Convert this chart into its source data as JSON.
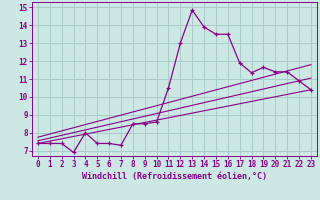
{
  "xlabel": "Windchill (Refroidissement éolien,°C)",
  "bg_color": "#cce8e4",
  "grid_color": "#aaccca",
  "line_color": "#880088",
  "spine_color": "#880088",
  "xlim": [
    -0.5,
    23.5
  ],
  "ylim": [
    6.7,
    15.3
  ],
  "xticks": [
    0,
    1,
    2,
    3,
    4,
    5,
    6,
    7,
    8,
    9,
    10,
    11,
    12,
    13,
    14,
    15,
    16,
    17,
    18,
    19,
    20,
    21,
    22,
    23
  ],
  "yticks": [
    7,
    8,
    9,
    10,
    11,
    12,
    13,
    14,
    15
  ],
  "main_x": [
    0,
    1,
    2,
    3,
    4,
    5,
    6,
    7,
    8,
    9,
    10,
    11,
    12,
    13,
    14,
    15,
    16,
    17,
    18,
    19,
    20,
    21,
    22,
    23
  ],
  "main_y": [
    7.4,
    7.4,
    7.4,
    6.9,
    8.0,
    7.4,
    7.4,
    7.3,
    8.5,
    8.5,
    8.6,
    10.5,
    13.0,
    14.85,
    13.9,
    13.5,
    13.5,
    11.9,
    11.35,
    11.65,
    11.4,
    11.4,
    10.9,
    10.4
  ],
  "line1_x": [
    0,
    23
  ],
  "line1_y": [
    7.4,
    10.4
  ],
  "line2_x": [
    0,
    23
  ],
  "line2_y": [
    7.55,
    11.05
  ],
  "line3_x": [
    0,
    23
  ],
  "line3_y": [
    7.75,
    11.8
  ],
  "fontsize_tick": 5.5,
  "fontsize_label": 6.0
}
